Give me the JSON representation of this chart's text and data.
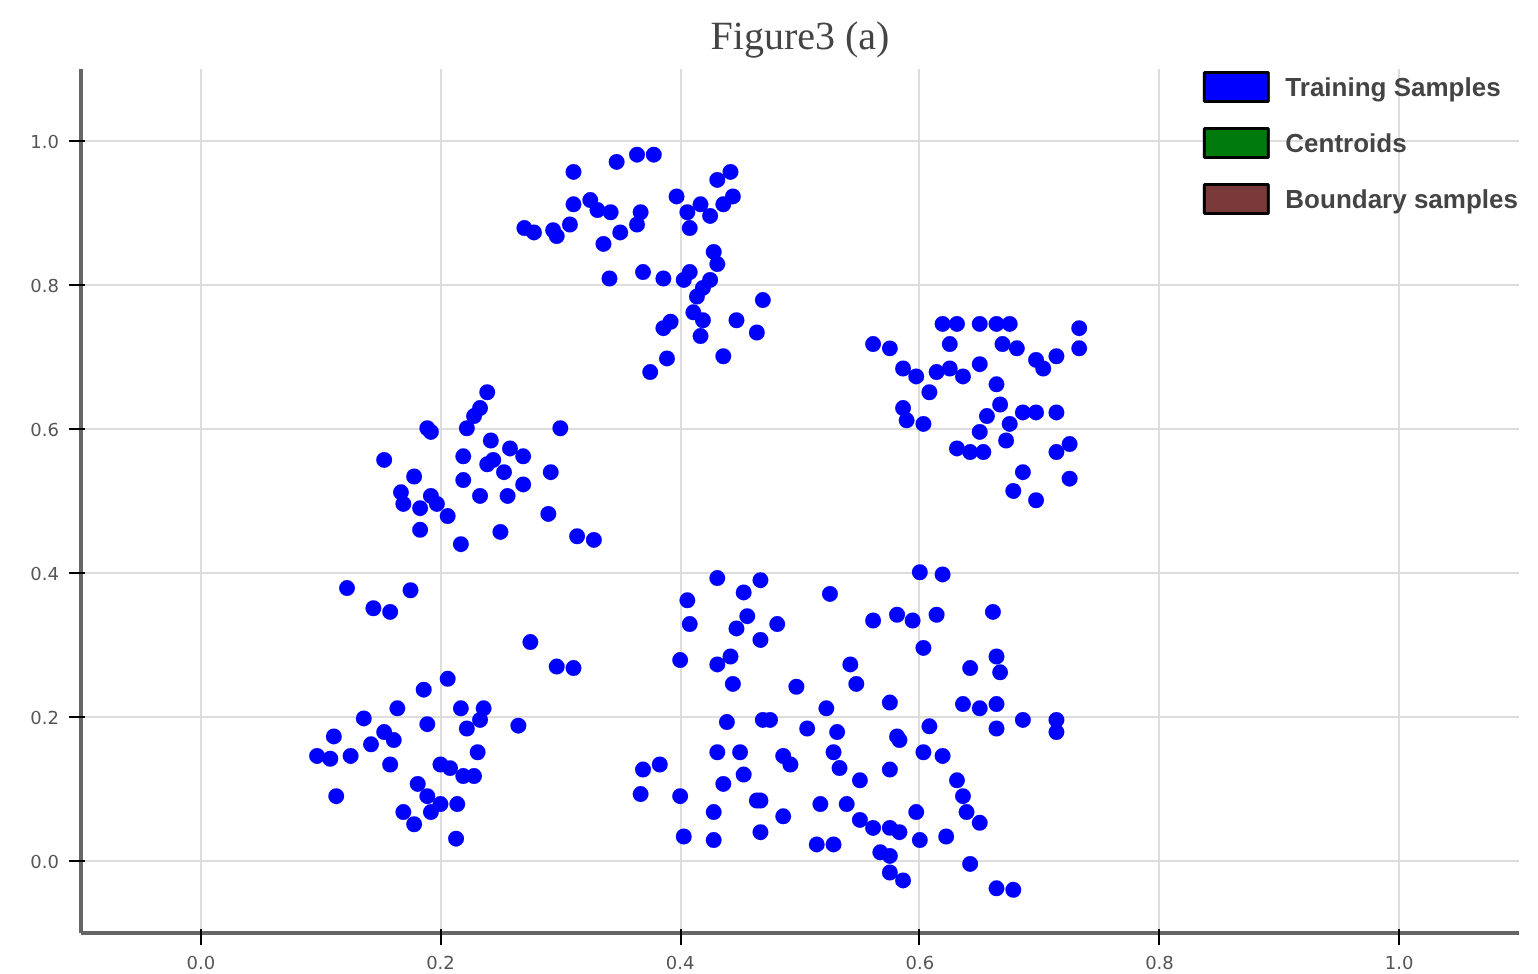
{
  "chart_data": {
    "type": "scatter",
    "title": "Figure3 (a)",
    "xlim": [
      -0.1,
      1.1
    ],
    "ylim": [
      -0.1,
      1.1
    ],
    "xticks": [
      {
        "value": 0,
        "label": "0.0"
      },
      0.2,
      0.4,
      0.6,
      0.8,
      {
        "value": 1,
        "label": "1.0"
      }
    ],
    "yticks": [
      {
        "value": 0,
        "label": "0.0"
      },
      0.2,
      0.4,
      0.6,
      0.8,
      {
        "value": 1,
        "label": "1.0"
      }
    ],
    "grid": true,
    "legend": "top right",
    "marker": "circle",
    "series": [
      {
        "name": "Training Samples",
        "color": "#0000ff",
        "x": [
          0.311,
          0.347,
          0.364,
          0.378,
          0.27,
          0.278,
          0.294,
          0.297,
          0.308,
          0.311,
          0.325,
          0.331,
          0.342,
          0.35,
          0.336,
          0.367,
          0.364,
          0.341,
          0.369,
          0.386,
          0.375,
          0.389,
          0.386,
          0.392,
          0.403,
          0.408,
          0.414,
          0.411,
          0.417,
          0.419,
          0.425,
          0.428,
          0.431,
          0.419,
          0.436,
          0.397,
          0.406,
          0.408,
          0.417,
          0.425,
          0.436,
          0.442,
          0.431,
          0.447,
          0.464,
          0.469,
          0.444,
          0.189,
          0.192,
          0.153,
          0.178,
          0.167,
          0.169,
          0.183,
          0.183,
          0.197,
          0.206,
          0.192,
          0.217,
          0.219,
          0.222,
          0.228,
          0.233,
          0.239,
          0.242,
          0.219,
          0.233,
          0.239,
          0.244,
          0.253,
          0.258,
          0.256,
          0.269,
          0.269,
          0.25,
          0.292,
          0.3,
          0.29,
          0.314,
          0.328,
          0.122,
          0.144,
          0.158,
          0.175,
          0.275,
          0.297,
          0.311,
          0.097,
          0.111,
          0.108,
          0.125,
          0.113,
          0.136,
          0.142,
          0.153,
          0.164,
          0.161,
          0.158,
          0.186,
          0.189,
          0.206,
          0.169,
          0.178,
          0.181,
          0.189,
          0.192,
          0.2,
          0.2,
          0.213,
          0.214,
          0.217,
          0.222,
          0.219,
          0.231,
          0.228,
          0.233,
          0.236,
          0.265,
          0.208,
          0.431,
          0.406,
          0.408,
          0.4,
          0.431,
          0.453,
          0.467,
          0.447,
          0.456,
          0.467,
          0.442,
          0.444,
          0.439,
          0.431,
          0.45,
          0.453,
          0.436,
          0.469,
          0.467,
          0.369,
          0.383,
          0.367,
          0.4,
          0.403,
          0.428,
          0.428,
          0.467,
          0.481,
          0.525,
          0.561,
          0.581,
          0.594,
          0.6,
          0.619,
          0.614,
          0.661,
          0.603,
          0.664,
          0.642,
          0.667,
          0.636,
          0.65,
          0.664,
          0.664,
          0.686,
          0.714,
          0.714,
          0.542,
          0.497,
          0.522,
          0.575,
          0.547,
          0.475,
          0.506,
          0.486,
          0.492,
          0.531,
          0.528,
          0.533,
          0.55,
          0.581,
          0.583,
          0.608,
          0.603,
          0.619,
          0.575,
          0.631,
          0.636,
          0.639,
          0.65,
          0.622,
          0.642,
          0.464,
          0.486,
          0.517,
          0.539,
          0.514,
          0.528,
          0.55,
          0.561,
          0.575,
          0.583,
          0.597,
          0.6,
          0.567,
          0.575,
          0.586,
          0.664,
          0.678,
          0.575,
          0.561,
          0.575,
          0.586,
          0.597,
          0.608,
          0.586,
          0.589,
          0.603,
          0.619,
          0.631,
          0.625,
          0.614,
          0.625,
          0.636,
          0.65,
          0.664,
          0.675,
          0.669,
          0.65,
          0.681,
          0.697,
          0.703,
          0.714,
          0.733,
          0.733,
          0.664,
          0.667,
          0.656,
          0.675,
          0.686,
          0.697,
          0.714,
          0.65,
          0.672,
          0.653,
          0.642,
          0.631,
          0.714,
          0.725,
          0.686,
          0.725,
          0.678,
          0.697
        ],
        "values": [
          0.957,
          0.971,
          0.981,
          0.981,
          0.879,
          0.873,
          0.876,
          0.868,
          0.884,
          0.912,
          0.918,
          0.904,
          0.901,
          0.873,
          0.857,
          0.901,
          0.884,
          0.809,
          0.818,
          0.809,
          0.679,
          0.698,
          0.74,
          0.749,
          0.807,
          0.818,
          0.784,
          0.762,
          0.729,
          0.751,
          0.807,
          0.846,
          0.829,
          0.796,
          0.701,
          0.923,
          0.901,
          0.879,
          0.912,
          0.896,
          0.912,
          0.957,
          0.946,
          0.751,
          0.734,
          0.779,
          0.923,
          0.601,
          0.596,
          0.557,
          0.534,
          0.512,
          0.496,
          0.49,
          0.46,
          0.496,
          0.479,
          0.507,
          0.44,
          0.529,
          0.601,
          0.618,
          0.629,
          0.651,
          0.584,
          0.562,
          0.507,
          0.551,
          0.557,
          0.54,
          0.573,
          0.507,
          0.562,
          0.523,
          0.457,
          0.54,
          0.601,
          0.482,
          0.451,
          0.446,
          0.379,
          0.351,
          0.346,
          0.376,
          0.304,
          0.27,
          0.268,
          0.146,
          0.173,
          0.142,
          0.146,
          0.09,
          0.198,
          0.162,
          0.179,
          0.212,
          0.168,
          0.134,
          0.238,
          0.19,
          0.253,
          0.068,
          0.051,
          0.107,
          0.09,
          0.068,
          0.134,
          0.079,
          0.031,
          0.079,
          0.212,
          0.184,
          0.118,
          0.151,
          0.118,
          0.196,
          0.212,
          0.188,
          0.129,
          0.393,
          0.362,
          0.329,
          0.279,
          0.273,
          0.373,
          0.39,
          0.323,
          0.34,
          0.307,
          0.284,
          0.246,
          0.193,
          0.151,
          0.151,
          0.12,
          0.107,
          0.196,
          0.084,
          0.127,
          0.134,
          0.093,
          0.09,
          0.034,
          0.029,
          0.068,
          0.04,
          0.329,
          0.371,
          0.334,
          0.342,
          0.334,
          0.401,
          0.398,
          0.342,
          0.346,
          0.296,
          0.284,
          0.268,
          0.262,
          0.218,
          0.212,
          0.218,
          0.184,
          0.196,
          0.196,
          0.179,
          0.273,
          0.242,
          0.212,
          0.22,
          0.246,
          0.196,
          0.184,
          0.146,
          0.134,
          0.179,
          0.151,
          0.129,
          0.112,
          0.173,
          0.168,
          0.187,
          0.151,
          0.146,
          0.127,
          0.112,
          0.09,
          0.068,
          0.053,
          0.034,
          -0.004,
          0.084,
          0.062,
          0.079,
          0.079,
          0.023,
          0.023,
          0.057,
          0.046,
          0.046,
          0.04,
          0.068,
          0.029,
          0.012,
          0.007,
          -0.027,
          -0.038,
          -0.04,
          -0.016,
          0.718,
          0.712,
          0.684,
          0.673,
          0.651,
          0.629,
          0.612,
          0.607,
          0.746,
          0.746,
          0.718,
          0.679,
          0.684,
          0.673,
          0.746,
          0.746,
          0.746,
          0.718,
          0.69,
          0.712,
          0.696,
          0.684,
          0.701,
          0.74,
          0.712,
          0.662,
          0.634,
          0.618,
          0.607,
          0.623,
          0.623,
          0.623,
          0.596,
          0.584,
          0.568,
          0.568,
          0.573,
          0.568,
          0.579,
          0.54,
          0.531,
          0.514,
          0.501
        ]
      },
      {
        "name": "Centroids",
        "color": "#007a0c"
      },
      {
        "name": "Boundary samples",
        "color": "#7a3a3a"
      }
    ]
  }
}
